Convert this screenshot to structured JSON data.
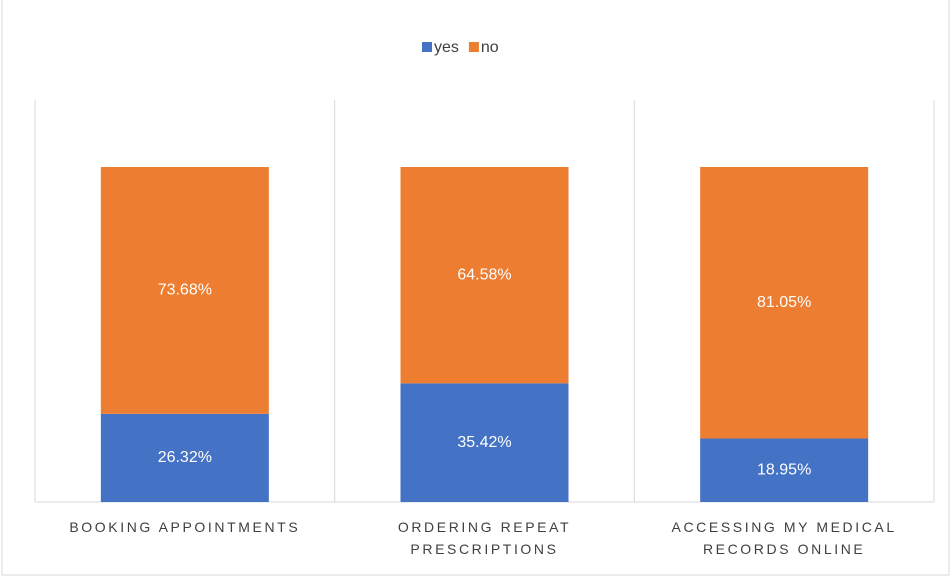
{
  "chart_data": {
    "type": "stacked_bar",
    "categories": [
      "BOOKING APPOINTMENTS",
      "ORDERING REPEAT PRESCRIPTIONS",
      "ACCESSING MY MEDICAL RECORDS ONLINE"
    ],
    "series": [
      {
        "name": "yes",
        "color": "#4472c4",
        "values": [
          26.32,
          35.42,
          18.95
        ],
        "value_labels": [
          "26.32%",
          "35.42%",
          "18.95%"
        ]
      },
      {
        "name": "no",
        "color": "#ed7d31",
        "values": [
          73.68,
          64.58,
          81.05
        ],
        "value_labels": [
          "73.68%",
          "64.58%",
          "81.05%"
        ]
      }
    ],
    "ylim": [
      0,
      120
    ],
    "legend": "top"
  }
}
